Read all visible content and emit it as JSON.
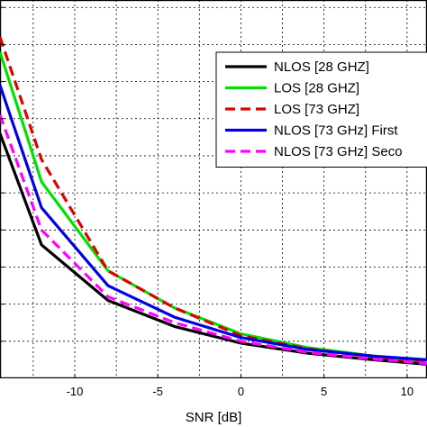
{
  "chart_data": {
    "type": "line",
    "xlabel": "SNR [dB]",
    "ylabel": "",
    "xlim": [
      -14.5,
      11.2
    ],
    "ylim": [
      0,
      10.2
    ],
    "xticks": [
      -10,
      -5,
      0,
      5,
      10
    ],
    "xtick_labels": [
      "-10",
      "-5",
      "0",
      "5",
      "10"
    ],
    "yticks": [
      1,
      2,
      3,
      4,
      5,
      6,
      7,
      8,
      9,
      10
    ],
    "grid": true,
    "grid_style": "dashed",
    "legend_position": "top-right",
    "series": [
      {
        "name": "NLOS [28 GHZ]",
        "color": "#000000",
        "dash": "solid",
        "x": [
          -14.5,
          -12,
          -8,
          -4,
          0,
          4,
          8,
          11.2
        ],
        "y": [
          6.6,
          3.6,
          2.1,
          1.4,
          0.95,
          0.68,
          0.5,
          0.38
        ]
      },
      {
        "name": "LOS [28 GHZ]",
        "color": "#00e000",
        "dash": "solid",
        "x": [
          -14.5,
          -12,
          -8,
          -4,
          0,
          4,
          8,
          11.2
        ],
        "y": [
          8.8,
          5.3,
          2.9,
          1.9,
          1.2,
          0.83,
          0.6,
          0.45
        ]
      },
      {
        "name": "LOS [73 GHZ]",
        "color": "#e00000",
        "dash": "dashed",
        "x": [
          -14.5,
          -12,
          -8,
          -4,
          0,
          4,
          8,
          11.2
        ],
        "y": [
          9.2,
          5.9,
          2.9,
          1.9,
          1.15,
          0.8,
          0.58,
          0.44
        ]
      },
      {
        "name": "NLOS [73 GHz] First",
        "color": "#0000e0",
        "dash": "solid",
        "x": [
          -14.5,
          -12,
          -8,
          -4,
          0,
          4,
          8,
          11.2
        ],
        "y": [
          7.9,
          4.6,
          2.5,
          1.65,
          1.1,
          0.78,
          0.6,
          0.5
        ]
      },
      {
        "name": "NLOS [73 GHz] Seco",
        "color": "#ff00ff",
        "dash": "dashed",
        "x": [
          -14.5,
          -12,
          -8,
          -4,
          0,
          4,
          8,
          11.2
        ],
        "y": [
          7.1,
          4.0,
          2.2,
          1.5,
          1.0,
          0.7,
          0.52,
          0.4
        ]
      }
    ]
  }
}
